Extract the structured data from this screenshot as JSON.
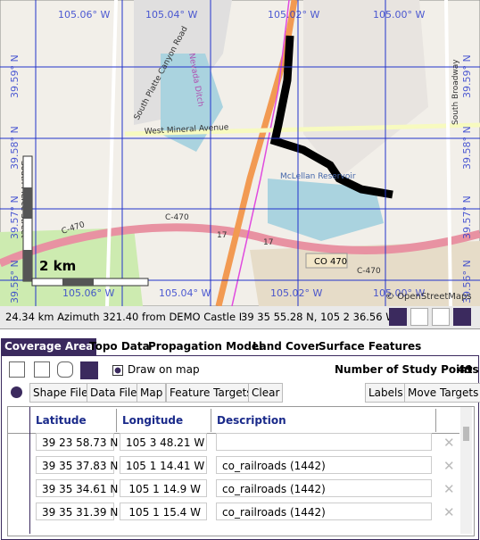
{
  "map": {
    "grid_labels_top": [
      "105.06° W",
      "105.04° W",
      "105.02° W",
      "105.00° W"
    ],
    "grid_labels_bottom": [
      "105.06° W",
      "105.04° W",
      "105.02° W",
      "105.00° W"
    ],
    "grid_labels_left": [
      "39.59° N",
      "39.58° N",
      "39.57° N",
      "39.56° N"
    ],
    "grid_labels_right": [
      "39.59° N",
      "39.58° N",
      "39.57° N",
      "39.56° N"
    ],
    "features": {
      "platte": "South Platte Canyon Road",
      "mineral": "West Mineral Avenue",
      "nevada": "Nevada Ditch",
      "c470a": "C-470",
      "c470b": "C-470",
      "c470c": "C-470",
      "co470": "CO 470",
      "r17a": "17",
      "r17b": "17",
      "reservoir": "McLellan Reservoir",
      "pierce": "South Pierce Street",
      "broadway": "South Broadway"
    },
    "scale": "2 km",
    "attribution": "© OpenStreetMaps"
  },
  "status": {
    "distance": "24.34 km Azimuth 321.40 from DEMO Castle Roc",
    "coords": "39 35 55.28 N, 105 2 36.56 W"
  },
  "tabs": [
    "Coverage Area",
    "Topo Data",
    "Propagation Model",
    "Land Cover",
    "Surface Features"
  ],
  "toolbar": {
    "draw": "Draw on map",
    "points_label": "Number of Study Points",
    "points_value": "49",
    "buttons": [
      "Shape File",
      "Data File",
      "Map",
      "Feature Targets",
      "Clear"
    ],
    "right_buttons": [
      "Labels",
      "Move Targets"
    ]
  },
  "table": {
    "headers": [
      "Latitude",
      "Longitude",
      "Description"
    ],
    "rows": [
      {
        "lat": "39 23 58.73 N",
        "lon": "105 3 48.21 W"
      },
      {
        "lat": "39 35 37.83 N",
        "lon": "105 1 14.41 W",
        "desc": "co_railroads (1442)"
      },
      {
        "lat": "39 35 34.61 N",
        "lon": "105 1 14.9 W",
        "desc": "co_railroads (1442)"
      },
      {
        "lat": "39 35 31.39 N",
        "lon": "105 1 15.4 W",
        "desc": "co_railroads (1442)"
      }
    ]
  }
}
